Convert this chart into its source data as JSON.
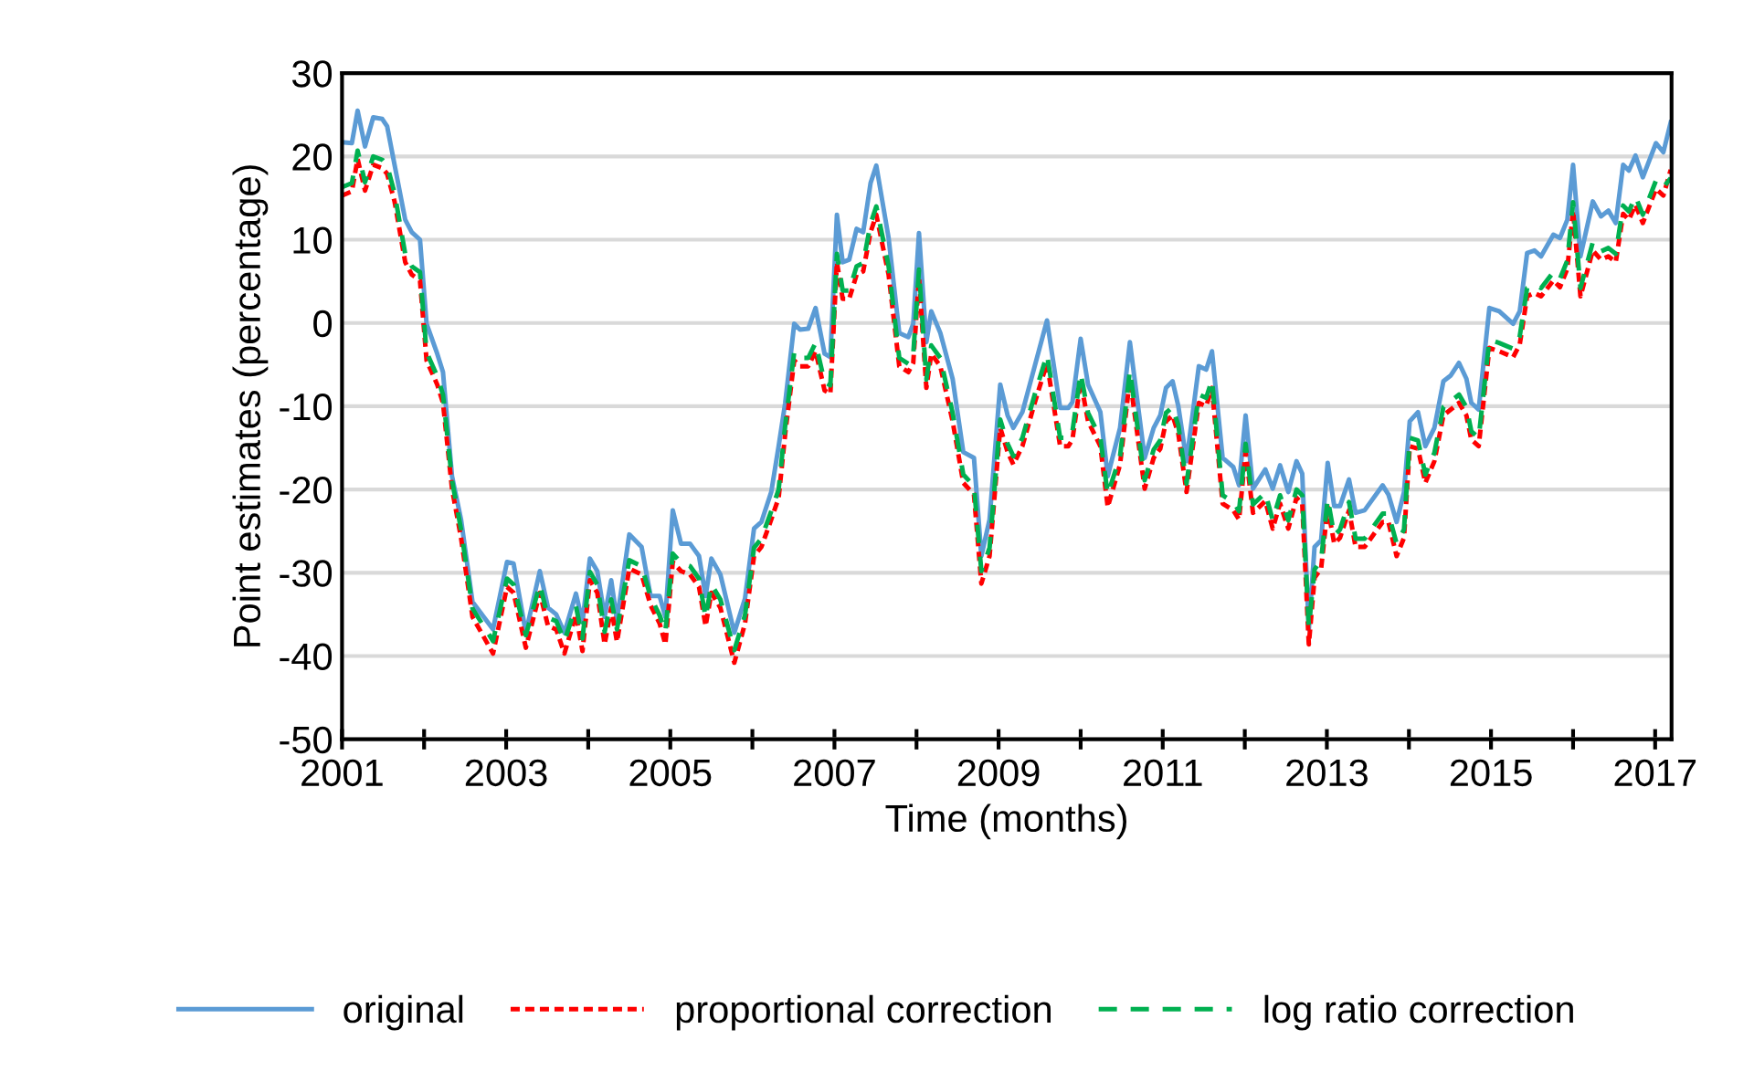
{
  "chart_data": {
    "type": "line",
    "xlabel": "Time (months)",
    "ylabel": "Point estimates (percentage)",
    "x": [
      2001.0,
      2001.12,
      2001.19,
      2001.28,
      2001.38,
      2001.49,
      2001.55,
      2001.64,
      2001.77,
      2001.85,
      2001.95,
      2002.03,
      2002.16,
      2002.23,
      2002.34,
      2002.45,
      2002.59,
      2002.84,
      2003.01,
      2003.09,
      2003.24,
      2003.41,
      2003.51,
      2003.61,
      2003.71,
      2003.85,
      2003.93,
      2004.02,
      2004.11,
      2004.2,
      2004.28,
      2004.35,
      2004.5,
      2004.65,
      2004.76,
      2004.87,
      2004.94,
      2005.03,
      2005.13,
      2005.24,
      2005.35,
      2005.43,
      2005.5,
      2005.61,
      2005.78,
      2005.91,
      2006.02,
      2006.11,
      2006.23,
      2006.32,
      2006.4,
      2006.51,
      2006.58,
      2006.68,
      2006.77,
      2006.88,
      2006.95,
      2007.03,
      2007.1,
      2007.18,
      2007.27,
      2007.35,
      2007.44,
      2007.51,
      2007.66,
      2007.79,
      2007.9,
      2007.96,
      2008.03,
      2008.12,
      2008.18,
      2008.29,
      2008.44,
      2008.57,
      2008.7,
      2008.79,
      2008.89,
      2009.02,
      2009.11,
      2009.18,
      2009.29,
      2009.44,
      2009.59,
      2009.75,
      2009.85,
      2009.9,
      2010.0,
      2010.09,
      2010.24,
      2010.33,
      2010.48,
      2010.6,
      2010.78,
      2010.89,
      2010.97,
      2011.04,
      2011.12,
      2011.19,
      2011.29,
      2011.44,
      2011.53,
      2011.6,
      2011.73,
      2011.86,
      2011.93,
      2012.01,
      2012.1,
      2012.25,
      2012.34,
      2012.43,
      2012.53,
      2012.63,
      2012.7,
      2012.78,
      2012.85,
      2012.93,
      2013.01,
      2013.09,
      2013.16,
      2013.27,
      2013.35,
      2013.46,
      2013.68,
      2013.75,
      2013.85,
      2013.94,
      2014.01,
      2014.11,
      2014.2,
      2014.31,
      2014.42,
      2014.51,
      2014.61,
      2014.7,
      2014.76,
      2014.85,
      2014.98,
      2015.1,
      2015.27,
      2015.35,
      2015.44,
      2015.53,
      2015.61,
      2015.76,
      2015.84,
      2015.93,
      2016.0,
      2016.09,
      2016.24,
      2016.34,
      2016.43,
      2016.52,
      2016.61,
      2016.68,
      2016.76,
      2016.85,
      2017.01,
      2017.1,
      2017.19
    ],
    "series": [
      {
        "name": "original",
        "color": "#5b9bd5",
        "line_style": "solid",
        "values": [
          21.7,
          21.6,
          25.5,
          21.2,
          24.7,
          24.5,
          23.6,
          19.0,
          12.4,
          10.9,
          10.0,
          -0.1,
          -3.7,
          -5.9,
          -18.4,
          -23.6,
          -33.5,
          -36.8,
          -28.7,
          -28.9,
          -37.2,
          -29.8,
          -34.2,
          -35.0,
          -37.2,
          -32.5,
          -35.9,
          -28.3,
          -29.8,
          -35.3,
          -30.9,
          -35.7,
          -25.4,
          -26.9,
          -32.8,
          -32.8,
          -35.3,
          -22.5,
          -26.5,
          -26.5,
          -28.0,
          -32.8,
          -28.3,
          -30.2,
          -37.2,
          -33.1,
          -24.7,
          -23.9,
          -20.3,
          -14.8,
          -9.6,
          -0.1,
          -0.8,
          -0.7,
          1.8,
          -3.7,
          -4.1,
          13.0,
          7.3,
          7.6,
          11.3,
          10.9,
          16.8,
          18.9,
          10.2,
          -1.2,
          -1.7,
          -0.1,
          10.8,
          -2.3,
          1.4,
          -1.2,
          -6.7,
          -15.5,
          -16.2,
          -28.0,
          -23.6,
          -7.4,
          -11.1,
          -12.6,
          -10.7,
          -5.2,
          0.3,
          -10.2,
          -10.2,
          -9.5,
          -1.9,
          -7.4,
          -10.7,
          -18.4,
          -12.6,
          -2.3,
          -16.2,
          -12.6,
          -11.1,
          -7.8,
          -7.0,
          -10.0,
          -16.6,
          -5.2,
          -5.6,
          -3.4,
          -16.2,
          -17.3,
          -19.5,
          -11.1,
          -19.9,
          -17.6,
          -19.9,
          -17.1,
          -20.3,
          -16.6,
          -18.1,
          -36.8,
          -26.9,
          -26.1,
          -16.8,
          -22.0,
          -22.0,
          -18.8,
          -22.8,
          -22.5,
          -19.5,
          -20.6,
          -23.9,
          -20.3,
          -11.8,
          -10.7,
          -14.8,
          -12.6,
          -7.0,
          -6.3,
          -4.8,
          -6.7,
          -9.6,
          -10.4,
          1.8,
          1.4,
          -0.1,
          1.4,
          8.4,
          8.7,
          8.0,
          10.6,
          10.2,
          12.4,
          19.0,
          8.0,
          14.6,
          12.8,
          13.5,
          12.0,
          19.0,
          18.3,
          20.1,
          17.5,
          21.6,
          20.5,
          24.1
        ]
      },
      {
        "name": "proportional correction",
        "color": "#ff0000",
        "line_style": "dotted",
        "values": [
          15.3,
          15.8,
          19.7,
          15.9,
          19.0,
          18.6,
          17.9,
          14.6,
          7.3,
          5.8,
          5.1,
          -4.5,
          -7.4,
          -9.6,
          -19.9,
          -25.8,
          -35.3,
          -39.7,
          -31.7,
          -32.4,
          -39.0,
          -32.4,
          -36.4,
          -36.8,
          -39.7,
          -35.0,
          -39.4,
          -30.9,
          -32.4,
          -38.6,
          -34.2,
          -38.3,
          -29.5,
          -30.2,
          -33.9,
          -36.1,
          -38.6,
          -28.7,
          -29.8,
          -30.2,
          -31.7,
          -36.4,
          -32.4,
          -34.2,
          -40.8,
          -36.1,
          -28.0,
          -26.9,
          -23.6,
          -21.0,
          -13.3,
          -4.5,
          -5.2,
          -5.2,
          -3.4,
          -8.1,
          -8.5,
          7.3,
          2.9,
          2.9,
          5.8,
          6.2,
          10.9,
          13.0,
          5.8,
          -5.2,
          -5.9,
          -4.8,
          5.4,
          -7.8,
          -3.7,
          -5.2,
          -11.8,
          -19.2,
          -20.6,
          -31.3,
          -28.0,
          -12.6,
          -15.5,
          -17.0,
          -14.8,
          -9.6,
          -4.8,
          -14.8,
          -14.8,
          -14.0,
          -7.0,
          -11.8,
          -14.8,
          -22.1,
          -17.0,
          -6.7,
          -19.9,
          -16.2,
          -15.1,
          -11.8,
          -11.1,
          -13.3,
          -20.3,
          -9.6,
          -10.0,
          -7.8,
          -21.7,
          -22.5,
          -23.6,
          -15.5,
          -22.8,
          -21.4,
          -24.7,
          -21.7,
          -24.7,
          -21.0,
          -21.7,
          -38.6,
          -30.6,
          -29.5,
          -22.1,
          -26.5,
          -25.8,
          -22.5,
          -26.9,
          -26.9,
          -23.9,
          -23.9,
          -28.0,
          -25.8,
          -14.8,
          -15.1,
          -19.2,
          -16.6,
          -11.1,
          -10.4,
          -9.6,
          -11.1,
          -14.0,
          -14.8,
          -3.0,
          -3.4,
          -4.1,
          -2.6,
          3.2,
          3.6,
          3.2,
          5.1,
          4.3,
          6.5,
          13.5,
          3.2,
          8.7,
          7.6,
          8.0,
          7.3,
          13.1,
          12.4,
          14.2,
          12.0,
          16.1,
          15.3,
          18.4
        ]
      },
      {
        "name": "log ratio correction",
        "color": "#00b050",
        "line_style": "dashed",
        "values": [
          16.3,
          16.8,
          20.7,
          16.9,
          20.0,
          19.6,
          18.9,
          15.6,
          8.3,
          6.8,
          6.1,
          -3.5,
          -6.4,
          -8.6,
          -18.9,
          -24.8,
          -34.3,
          -38.2,
          -30.7,
          -31.4,
          -37.5,
          -31.4,
          -35.4,
          -35.8,
          -38.2,
          -34.0,
          -37.9,
          -29.9,
          -31.4,
          -37.1,
          -33.2,
          -36.8,
          -28.5,
          -29.2,
          -32.9,
          -35.1,
          -37.1,
          -27.7,
          -28.8,
          -29.2,
          -30.7,
          -35.4,
          -31.4,
          -33.2,
          -39.3,
          -35.1,
          -27.0,
          -25.9,
          -22.6,
          -20.0,
          -12.3,
          -3.5,
          -4.2,
          -4.2,
          -2.4,
          -7.1,
          -7.5,
          8.3,
          3.9,
          3.9,
          6.8,
          7.2,
          11.9,
          14.0,
          6.8,
          -4.2,
          -4.9,
          -3.8,
          6.4,
          -6.8,
          -2.7,
          -4.2,
          -10.8,
          -18.2,
          -19.6,
          -29.8,
          -27.0,
          -11.6,
          -14.5,
          -16.0,
          -13.8,
          -8.6,
          -3.8,
          -13.8,
          -13.8,
          -13.0,
          -6.0,
          -10.8,
          -13.8,
          -20.6,
          -16.0,
          -5.7,
          -18.9,
          -15.2,
          -14.1,
          -10.8,
          -10.1,
          -12.3,
          -19.3,
          -8.6,
          -9.0,
          -6.8,
          -20.7,
          -21.5,
          -22.6,
          -14.5,
          -21.8,
          -20.4,
          -23.7,
          -20.7,
          -23.7,
          -20.0,
          -20.7,
          -36.5,
          -29.6,
          -28.5,
          -21.1,
          -25.5,
          -24.8,
          -21.5,
          -25.9,
          -25.9,
          -22.9,
          -22.9,
          -26.5,
          -24.8,
          -13.8,
          -14.1,
          -18.2,
          -15.6,
          -10.1,
          -9.4,
          -8.6,
          -10.1,
          -13.0,
          -13.8,
          -2.0,
          -2.4,
          -3.1,
          -1.6,
          4.2,
          4.6,
          4.2,
          6.1,
          5.3,
          7.5,
          14.5,
          4.2,
          9.7,
          8.6,
          9.0,
          8.3,
          14.1,
          13.4,
          15.2,
          13.0,
          17.1,
          16.3,
          17.4
        ]
      }
    ],
    "xlim": [
      2001,
      2017.2
    ],
    "xticks": [
      2001,
      {
        "value": 2002,
        "label": null
      },
      2003,
      {
        "value": 2004,
        "label": null
      },
      2005,
      {
        "value": 2006,
        "label": null
      },
      2007,
      {
        "value": 2008,
        "label": null
      },
      2009,
      {
        "value": 2010,
        "label": null
      },
      2011,
      {
        "value": 2012,
        "label": null
      },
      2013,
      {
        "value": 2014,
        "label": null
      },
      2015,
      {
        "value": 2016,
        "label": null
      },
      2017
    ],
    "ylim": [
      -50,
      30
    ],
    "yticks": [
      30,
      20,
      10,
      0,
      -10,
      -20,
      -30,
      -40,
      -50
    ],
    "grid": "y",
    "legend": "bottom",
    "marker": "none"
  }
}
